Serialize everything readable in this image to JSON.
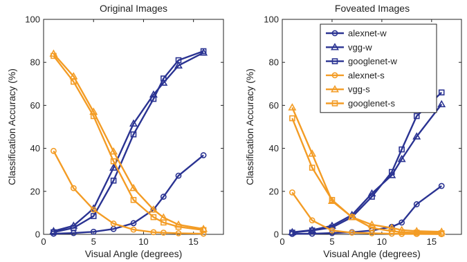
{
  "colors": {
    "w": "#2a3392",
    "s": "#f39c25",
    "axis": "#222222"
  },
  "chart_data": [
    {
      "type": "line",
      "title": "Original Images",
      "xlabel": "Visual Angle (degrees)",
      "ylabel": "Classification Accuracy (%)",
      "xlim": [
        0,
        18
      ],
      "ylim": [
        0,
        100
      ],
      "xticks": [
        0,
        5,
        10,
        15
      ],
      "yticks": [
        0,
        20,
        40,
        60,
        80,
        100
      ],
      "x": [
        1,
        3,
        5,
        7,
        9,
        11,
        12,
        13.5,
        16
      ],
      "series": [
        {
          "name": "alexnet-w",
          "group": "w",
          "marker": "circle",
          "values": [
            0.3,
            0.6,
            1.2,
            2.5,
            5.2,
            11.5,
            17.5,
            27.3,
            36.8
          ]
        },
        {
          "name": "vgg-w",
          "group": "w",
          "marker": "triangle",
          "values": [
            1.5,
            4.0,
            12.0,
            31.0,
            51.5,
            65.0,
            70.5,
            78.5,
            84.5
          ]
        },
        {
          "name": "googlenet-w",
          "group": "w",
          "marker": "square",
          "values": [
            1.0,
            3.0,
            8.5,
            25.0,
            46.5,
            63.0,
            72.5,
            81.0,
            85.2
          ]
        },
        {
          "name": "alexnet-s",
          "group": "s",
          "marker": "circle",
          "values": [
            38.8,
            21.5,
            11.5,
            5.0,
            2.2,
            1.0,
            0.8,
            0.5,
            0.3
          ]
        },
        {
          "name": "vgg-s",
          "group": "s",
          "marker": "triangle",
          "values": [
            84.0,
            73.5,
            57.0,
            38.5,
            21.5,
            11.5,
            7.8,
            4.5,
            2.5
          ]
        },
        {
          "name": "googlenet-s",
          "group": "s",
          "marker": "square",
          "values": [
            83.0,
            71.0,
            55.0,
            34.0,
            16.0,
            8.0,
            5.5,
            3.5,
            2.0
          ]
        }
      ]
    },
    {
      "type": "line",
      "title": "Foveated Images",
      "xlabel": "Visual Angle (degrees)",
      "ylabel": "Classification Accuracy (%)",
      "xlim": [
        0,
        18
      ],
      "ylim": [
        0,
        100
      ],
      "xticks": [
        0,
        5,
        10,
        15
      ],
      "yticks": [
        0,
        20,
        40,
        60,
        80,
        100
      ],
      "x": [
        1,
        3,
        5,
        7,
        9,
        11,
        12,
        13.5,
        16
      ],
      "legend": {
        "placement": "top-right"
      },
      "series": [
        {
          "name": "alexnet-w",
          "group": "w",
          "marker": "circle",
          "values": [
            0.2,
            0.3,
            0.6,
            1.0,
            1.8,
            3.5,
            5.5,
            14.0,
            22.5
          ]
        },
        {
          "name": "vgg-w",
          "group": "w",
          "marker": "triangle",
          "values": [
            1.0,
            2.0,
            4.0,
            9.0,
            19.0,
            27.5,
            35.0,
            45.5,
            60.5
          ]
        },
        {
          "name": "googlenet-w",
          "group": "w",
          "marker": "square",
          "values": [
            0.8,
            1.8,
            3.2,
            8.0,
            17.5,
            29.0,
            39.5,
            55.0,
            66.0
          ]
        },
        {
          "name": "alexnet-s",
          "group": "s",
          "marker": "circle",
          "values": [
            19.5,
            6.5,
            1.8,
            0.8,
            0.5,
            0.3,
            0.2,
            0.2,
            0.1
          ]
        },
        {
          "name": "vgg-s",
          "group": "s",
          "marker": "triangle",
          "values": [
            59.0,
            37.5,
            15.5,
            8.0,
            4.5,
            3.0,
            2.0,
            1.5,
            1.2
          ]
        },
        {
          "name": "googlenet-s",
          "group": "s",
          "marker": "square",
          "values": [
            54.0,
            31.0,
            16.0,
            8.0,
            3.0,
            1.5,
            1.0,
            0.8,
            0.5
          ]
        }
      ]
    }
  ]
}
